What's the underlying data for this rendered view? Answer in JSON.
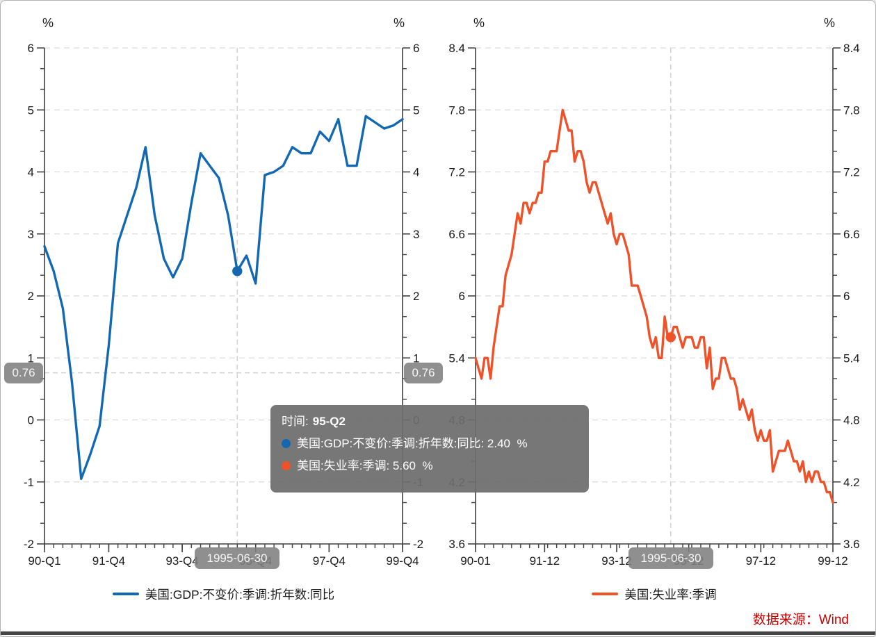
{
  "source_note": "数据来源：Wind",
  "tooltip": {
    "time_label": "时间:",
    "time_value": "95-Q2",
    "series": [
      {
        "label": "美国:GDP:不变价:季调:折年数:同比:",
        "value": "2.40",
        "unit": "%",
        "color": "#1268b2"
      },
      {
        "label": "美国:失业率:季调:",
        "value": "5.60",
        "unit": "%",
        "color": "#ef5228"
      }
    ]
  },
  "badges": {
    "y_value": "0.76",
    "x_date": "1995-06-30"
  },
  "chart_data": [
    {
      "type": "line",
      "name": "us-gdp-yoy",
      "legend": "美国:GDP:不变价:季调:折年数:同比",
      "color": "#1268b2",
      "y_unit": "%",
      "ylim": [
        -2,
        6
      ],
      "yticks": [
        6,
        5,
        4,
        3,
        2,
        1,
        0,
        -1,
        -2
      ],
      "ytick_labels": [
        "6",
        "5",
        "4",
        "3",
        "2",
        "1",
        "0",
        "-1",
        "-2"
      ],
      "x_minor_step": 1,
      "xtick_label_indices": [
        0,
        7,
        15,
        23,
        31,
        39
      ],
      "xtick_labels": [
        "90-Q1",
        "91-Q4",
        "93-Q4",
        "95-Q4",
        "97-Q4",
        "99-Q4"
      ],
      "categories": [
        "90-Q1",
        "90-Q2",
        "90-Q3",
        "90-Q4",
        "91-Q1",
        "91-Q2",
        "91-Q3",
        "91-Q4",
        "92-Q1",
        "92-Q2",
        "92-Q3",
        "92-Q4",
        "93-Q1",
        "93-Q2",
        "93-Q3",
        "93-Q4",
        "94-Q1",
        "94-Q2",
        "94-Q3",
        "94-Q4",
        "95-Q1",
        "95-Q2",
        "95-Q3",
        "95-Q4",
        "96-Q1",
        "96-Q2",
        "96-Q3",
        "96-Q4",
        "97-Q1",
        "97-Q2",
        "97-Q3",
        "97-Q4",
        "98-Q1",
        "98-Q2",
        "98-Q3",
        "98-Q4",
        "99-Q1",
        "99-Q2",
        "99-Q3",
        "99-Q4"
      ],
      "values": [
        2.8,
        2.4,
        1.8,
        0.6,
        -0.95,
        -0.55,
        -0.1,
        1.2,
        2.85,
        3.3,
        3.75,
        4.4,
        3.3,
        2.6,
        2.3,
        2.6,
        3.5,
        4.3,
        4.1,
        3.9,
        3.3,
        2.4,
        2.65,
        2.2,
        3.95,
        4.0,
        4.1,
        4.4,
        4.3,
        4.3,
        4.65,
        4.5,
        4.85,
        4.1,
        4.1,
        4.9,
        4.8,
        4.7,
        4.75,
        4.85
      ],
      "selected": {
        "index": 21,
        "category": "95-Q2",
        "value": 2.4
      },
      "crosshair_y": 0.76
    },
    {
      "type": "line",
      "name": "us-unemployment-rate",
      "legend": "美国:失业率:季调",
      "color": "#ef5228",
      "y_unit": "%",
      "ylim": [
        3.6,
        8.4
      ],
      "yticks": [
        8.4,
        7.8,
        7.2,
        6.6,
        6,
        5.4,
        4.8,
        4.2,
        3.6
      ],
      "ytick_labels": [
        "8.4",
        "7.8",
        "7.2",
        "6.6",
        "6",
        "5.4",
        "4.8",
        "4.2",
        "3.6"
      ],
      "x_minor_step": 3,
      "xtick_label_indices": [
        0,
        23,
        47,
        71,
        95,
        119
      ],
      "xtick_labels": [
        "90-01",
        "91-12",
        "93-12",
        "95-12",
        "97-12",
        "99-12"
      ],
      "categories": [
        "90-01",
        "90-02",
        "90-03",
        "90-04",
        "90-05",
        "90-06",
        "90-07",
        "90-08",
        "90-09",
        "90-10",
        "90-11",
        "90-12",
        "91-01",
        "91-02",
        "91-03",
        "91-04",
        "91-05",
        "91-06",
        "91-07",
        "91-08",
        "91-09",
        "91-10",
        "91-11",
        "91-12",
        "92-01",
        "92-02",
        "92-03",
        "92-04",
        "92-05",
        "92-06",
        "92-07",
        "92-08",
        "92-09",
        "92-10",
        "92-11",
        "92-12",
        "93-01",
        "93-02",
        "93-03",
        "93-04",
        "93-05",
        "93-06",
        "93-07",
        "93-08",
        "93-09",
        "93-10",
        "93-11",
        "93-12",
        "94-01",
        "94-02",
        "94-03",
        "94-04",
        "94-05",
        "94-06",
        "94-07",
        "94-08",
        "94-09",
        "94-10",
        "94-11",
        "94-12",
        "95-01",
        "95-02",
        "95-03",
        "95-04",
        "95-05",
        "95-06",
        "95-07",
        "95-08",
        "95-09",
        "95-10",
        "95-11",
        "95-12",
        "96-01",
        "96-02",
        "96-03",
        "96-04",
        "96-05",
        "96-06",
        "96-07",
        "96-08",
        "96-09",
        "96-10",
        "96-11",
        "96-12",
        "97-01",
        "97-02",
        "97-03",
        "97-04",
        "97-05",
        "97-06",
        "97-07",
        "97-08",
        "97-09",
        "97-10",
        "97-11",
        "97-12",
        "98-01",
        "98-02",
        "98-03",
        "98-04",
        "98-05",
        "98-06",
        "98-07",
        "98-08",
        "98-09",
        "98-10",
        "98-11",
        "98-12",
        "99-01",
        "99-02",
        "99-03",
        "99-04",
        "99-05",
        "99-06",
        "99-07",
        "99-08",
        "99-09",
        "99-10",
        "99-11",
        "99-12"
      ],
      "values": [
        5.4,
        5.3,
        5.2,
        5.4,
        5.4,
        5.2,
        5.5,
        5.7,
        5.9,
        5.9,
        6.2,
        6.3,
        6.4,
        6.6,
        6.8,
        6.7,
        6.9,
        6.9,
        6.8,
        6.9,
        6.9,
        7.0,
        7.0,
        7.3,
        7.3,
        7.4,
        7.4,
        7.4,
        7.6,
        7.8,
        7.7,
        7.6,
        7.6,
        7.3,
        7.4,
        7.4,
        7.3,
        7.1,
        7.0,
        7.1,
        7.1,
        7.0,
        6.9,
        6.8,
        6.7,
        6.8,
        6.6,
        6.5,
        6.6,
        6.6,
        6.5,
        6.4,
        6.1,
        6.1,
        6.1,
        6.0,
        5.9,
        5.8,
        5.6,
        5.5,
        5.6,
        5.4,
        5.4,
        5.8,
        5.6,
        5.6,
        5.7,
        5.7,
        5.6,
        5.5,
        5.6,
        5.6,
        5.6,
        5.5,
        5.5,
        5.6,
        5.6,
        5.3,
        5.5,
        5.1,
        5.2,
        5.2,
        5.4,
        5.4,
        5.3,
        5.2,
        5.2,
        5.1,
        4.9,
        5.0,
        4.9,
        4.8,
        4.9,
        4.7,
        4.6,
        4.7,
        4.6,
        4.6,
        4.7,
        4.3,
        4.4,
        4.5,
        4.5,
        4.5,
        4.6,
        4.5,
        4.4,
        4.4,
        4.3,
        4.4,
        4.2,
        4.3,
        4.2,
        4.3,
        4.3,
        4.2,
        4.2,
        4.1,
        4.1,
        4.0
      ],
      "selected": {
        "index": 65,
        "category": "95-06",
        "value": 5.6
      },
      "crosshair_y": null
    }
  ]
}
